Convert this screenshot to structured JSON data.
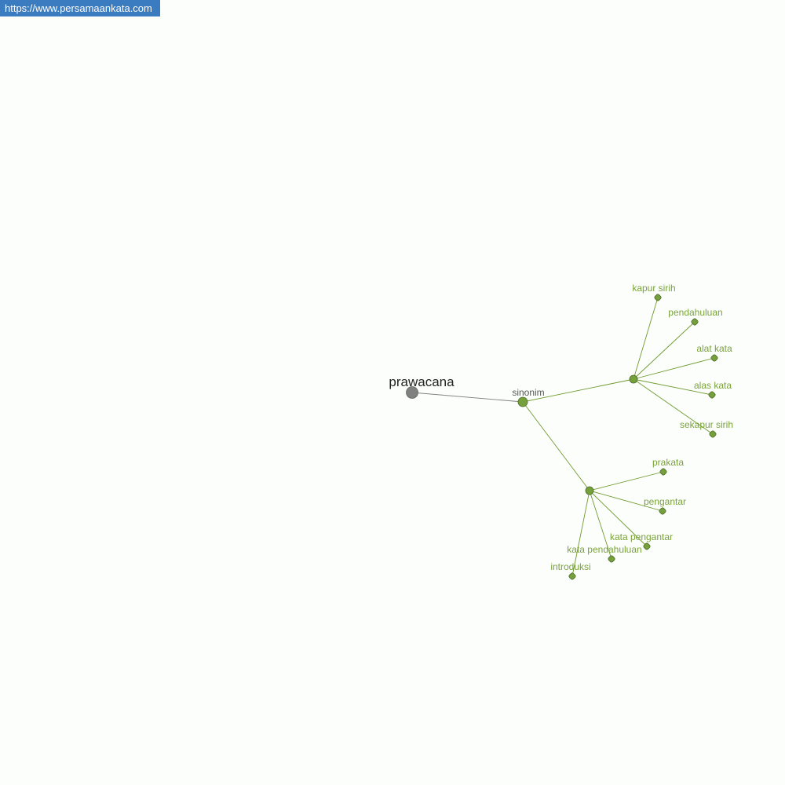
{
  "site_badge": "https://www.persamaankata.com",
  "colors": {
    "root": "#808080",
    "node": "#76a03c",
    "edge_root": "#808080",
    "edge": "#6f9a2e",
    "label": "#7aa33a",
    "badge": "#3b7bbf"
  },
  "graph": {
    "root": {
      "label": "prawacana"
    },
    "relation": {
      "label": "sinonim"
    },
    "groups": [
      {
        "leaves": [
          "kapur sirih",
          "pendahuluan",
          "alat kata",
          "alas kata",
          "sekapur sirih"
        ]
      },
      {
        "leaves": [
          "prakata",
          "pengantar",
          "kata pengantar",
          "kata pendahuluan",
          "introduksi"
        ]
      }
    ]
  }
}
